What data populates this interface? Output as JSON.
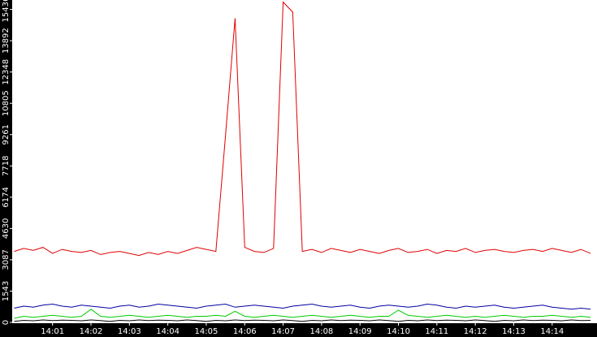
{
  "chart_data": {
    "type": "line",
    "x": [
      0,
      15,
      30,
      45,
      60,
      75,
      90,
      105,
      120,
      135,
      150,
      165,
      180,
      195,
      210,
      225,
      240,
      255,
      270,
      285,
      300,
      315,
      330,
      345,
      360,
      375,
      390,
      405,
      420,
      435,
      450,
      465,
      480,
      495,
      510,
      525,
      540,
      555,
      570,
      585,
      600,
      615,
      630,
      645,
      660,
      675,
      690,
      705,
      720,
      735,
      750,
      765,
      780,
      795,
      810,
      825,
      840,
      855,
      870,
      885,
      900
    ],
    "xlim": [
      -3,
      910
    ],
    "xticks": [
      {
        "value": 60,
        "label": "14:01"
      },
      {
        "value": 120,
        "label": "14:02"
      },
      {
        "value": 180,
        "label": "14:03"
      },
      {
        "value": 240,
        "label": "14:04"
      },
      {
        "value": 300,
        "label": "14:05"
      },
      {
        "value": 360,
        "label": "14:06"
      },
      {
        "value": 420,
        "label": "14:07"
      },
      {
        "value": 480,
        "label": "14:08"
      },
      {
        "value": 540,
        "label": "14:09"
      },
      {
        "value": 600,
        "label": "14:10"
      },
      {
        "value": 660,
        "label": "14:11"
      },
      {
        "value": 720,
        "label": "14:12"
      },
      {
        "value": 780,
        "label": "14:13"
      },
      {
        "value": 840,
        "label": "14:14"
      }
    ],
    "ylim": [
      0,
      15900
    ],
    "yticks": [
      0,
      1543,
      3087,
      4630,
      6174,
      7718,
      9261,
      10805,
      12348,
      13892,
      15436
    ],
    "grid": false,
    "series": [
      {
        "color": "#e00000",
        "values": [
          3500,
          3650,
          3550,
          3700,
          3400,
          3600,
          3500,
          3450,
          3550,
          3350,
          3450,
          3500,
          3400,
          3300,
          3450,
          3350,
          3500,
          3400,
          3550,
          3700,
          3600,
          3500,
          9200,
          15000,
          3700,
          3500,
          3450,
          3650,
          15800,
          15300,
          3500,
          3600,
          3450,
          3650,
          3550,
          3450,
          3600,
          3500,
          3400,
          3550,
          3650,
          3450,
          3500,
          3600,
          3400,
          3550,
          3500,
          3650,
          3450,
          3550,
          3600,
          3500,
          3450,
          3550,
          3600,
          3500,
          3650,
          3550,
          3450,
          3600,
          3400
        ]
      },
      {
        "color": "#0000a0",
        "values": [
          700,
          800,
          750,
          850,
          900,
          800,
          750,
          850,
          800,
          750,
          700,
          800,
          850,
          750,
          800,
          900,
          850,
          800,
          750,
          700,
          800,
          850,
          900,
          750,
          800,
          850,
          800,
          750,
          700,
          800,
          850,
          900,
          800,
          750,
          800,
          850,
          750,
          700,
          800,
          850,
          800,
          750,
          800,
          900,
          850,
          750,
          700,
          800,
          750,
          800,
          850,
          750,
          700,
          750,
          800,
          850,
          750,
          700,
          650,
          700,
          650
        ]
      },
      {
        "color": "#00cc00",
        "values": [
          200,
          300,
          250,
          300,
          350,
          300,
          250,
          300,
          650,
          300,
          250,
          300,
          350,
          300,
          250,
          300,
          350,
          300,
          250,
          300,
          300,
          350,
          300,
          550,
          300,
          250,
          300,
          350,
          300,
          250,
          300,
          350,
          300,
          250,
          300,
          350,
          300,
          250,
          300,
          300,
          600,
          350,
          300,
          250,
          300,
          350,
          300,
          250,
          300,
          250,
          300,
          350,
          300,
          250,
          300,
          300,
          350,
          300,
          250,
          300,
          250
        ]
      },
      {
        "color": "#000000",
        "values": [
          50,
          100,
          80,
          120,
          90,
          110,
          100,
          80,
          120,
          90,
          50,
          100,
          80,
          120,
          90,
          110,
          100,
          80,
          120,
          90,
          50,
          100,
          80,
          120,
          90,
          110,
          100,
          80,
          120,
          90,
          50,
          100,
          80,
          120,
          90,
          110,
          100,
          80,
          120,
          90,
          50,
          100,
          80,
          120,
          90,
          110,
          100,
          80,
          120,
          90,
          50,
          100,
          80,
          120,
          90,
          110,
          100,
          80,
          120,
          90,
          100
        ]
      }
    ]
  }
}
